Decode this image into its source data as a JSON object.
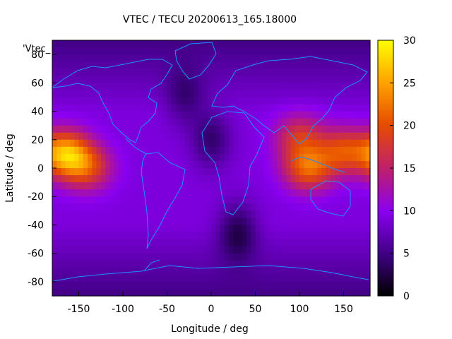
{
  "chart_data": {
    "type": "heatmap",
    "title": "VTEC / TECU 20200613_165.18000",
    "xlabel": "Longitude / deg",
    "ylabel": "Latitude / deg",
    "series_label": "'Vtec_",
    "xlim": [
      -180,
      180
    ],
    "ylim": [
      -90,
      90
    ],
    "x_ticks": [
      -150,
      -100,
      -50,
      0,
      50,
      100,
      150
    ],
    "y_ticks": [
      -80,
      -60,
      -40,
      -20,
      0,
      20,
      40,
      60,
      80
    ],
    "colorbar": {
      "range": [
        0,
        30
      ],
      "ticks": [
        0,
        5,
        10,
        15,
        20,
        25,
        30
      ]
    },
    "grid": false,
    "peaks": [
      {
        "lon": -165,
        "lat": 10,
        "value": 25
      },
      {
        "lon": -140,
        "lat": 0,
        "value": 18
      },
      {
        "lon": 110,
        "lat": 0,
        "value": 21
      },
      {
        "lon": 150,
        "lat": 12,
        "value": 19
      },
      {
        "lon": 100,
        "lat": 22,
        "value": 17
      }
    ],
    "lows": [
      {
        "lon": 0,
        "lat": 20,
        "value": 4
      },
      {
        "lon": 30,
        "lat": -45,
        "value": 3
      },
      {
        "lon": -30,
        "lat": 50,
        "value": 5
      }
    ],
    "baseline": 9
  }
}
